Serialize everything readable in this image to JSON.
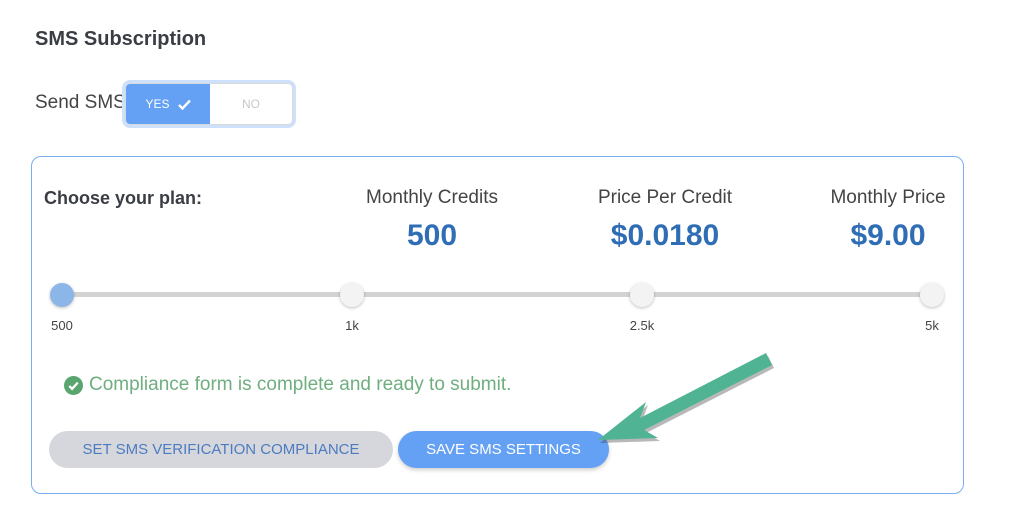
{
  "section_title": "SMS Subscription",
  "send_sms": {
    "label": "Send SMS",
    "yes_label": "YES",
    "no_label": "NO",
    "selected": "YES"
  },
  "plan": {
    "choose_label": "Choose your plan:",
    "columns": [
      {
        "header": "Monthly Credits",
        "value": "500"
      },
      {
        "header": "Price Per Credit",
        "value": "$0.0180"
      },
      {
        "header": "Monthly Price",
        "value": "$9.00"
      }
    ],
    "slider": {
      "ticks": [
        "500",
        "1k",
        "2.5k",
        "5k"
      ],
      "selected_index": 0
    }
  },
  "compliance_message": "Compliance form is complete and ready to submit.",
  "buttons": {
    "compliance": "SET SMS VERIFICATION COMPLIANCE",
    "save": "SAVE SMS SETTINGS"
  },
  "colors": {
    "accent": "#64a0f4",
    "value_text": "#2f6db5",
    "success": "#6fae7f",
    "annotation_arrow": "#4fb394"
  }
}
